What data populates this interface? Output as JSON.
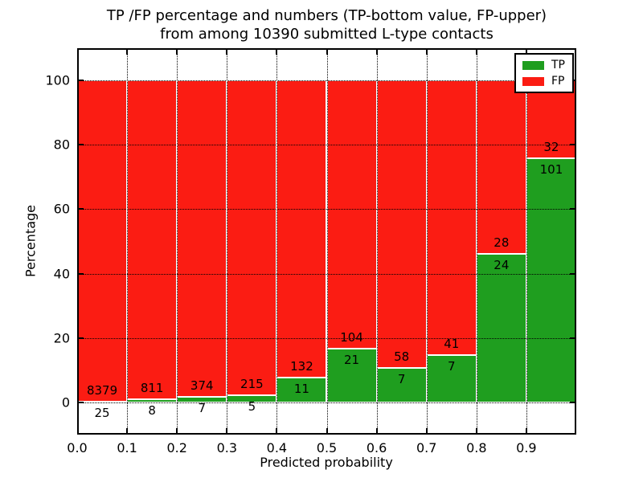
{
  "title": {
    "line1": "TP /FP percentage and numbers (TP-bottom value, FP-upper)",
    "line2": "from among 10390 submitted L-type contacts"
  },
  "chart_data": {
    "type": "bar",
    "stacked": true,
    "normalized": "each probability bin stacks to 100%",
    "title": "TP /FP percentage and numbers (TP-bottom value, FP-upper) from among 10390 submitted L-type contacts",
    "xlabel": "Predicted probability",
    "ylabel": "Percentage",
    "xlim": [
      0.0,
      1.0
    ],
    "ylim": [
      -10,
      110
    ],
    "xtick_values": [
      0.0,
      0.1,
      0.2,
      0.3,
      0.4,
      0.5,
      0.6,
      0.7,
      0.8,
      0.9
    ],
    "xtick_labels": [
      "0.0",
      "0.1",
      "0.2",
      "0.3",
      "0.4",
      "0.5",
      "0.6",
      "0.7",
      "0.8",
      "0.9"
    ],
    "ytick_values": [
      0,
      20,
      40,
      60,
      80,
      100
    ],
    "ytick_labels": [
      "0",
      "20",
      "40",
      "60",
      "80",
      "100"
    ],
    "bin_edges": [
      0.0,
      0.1,
      0.2,
      0.3,
      0.4,
      0.5,
      0.6,
      0.7,
      0.8,
      0.9,
      1.0
    ],
    "grid": "dotted black, horizontal at yticks and vertical at xticks, drawn over bars",
    "bar_edge_color": "#ffffff",
    "total_contacts": 10390,
    "legend": {
      "position": "upper right",
      "entries": [
        {
          "label": "TP",
          "color": "#1f9e1f"
        },
        {
          "label": "FP",
          "color": "#fb1c13"
        }
      ]
    },
    "series": [
      {
        "name": "TP",
        "color": "#1f9e1f",
        "counts": [
          25,
          8,
          7,
          5,
          11,
          21,
          7,
          7,
          24,
          101
        ],
        "percent": [
          0.3,
          0.98,
          1.84,
          2.27,
          7.69,
          16.8,
          10.77,
          14.58,
          46.15,
          75.94
        ]
      },
      {
        "name": "FP",
        "color": "#fb1c13",
        "counts": [
          8379,
          811,
          374,
          215,
          132,
          104,
          58,
          41,
          28,
          32
        ],
        "percent": [
          99.7,
          99.02,
          98.16,
          97.73,
          92.31,
          83.2,
          89.23,
          85.42,
          53.85,
          24.06
        ]
      }
    ]
  }
}
